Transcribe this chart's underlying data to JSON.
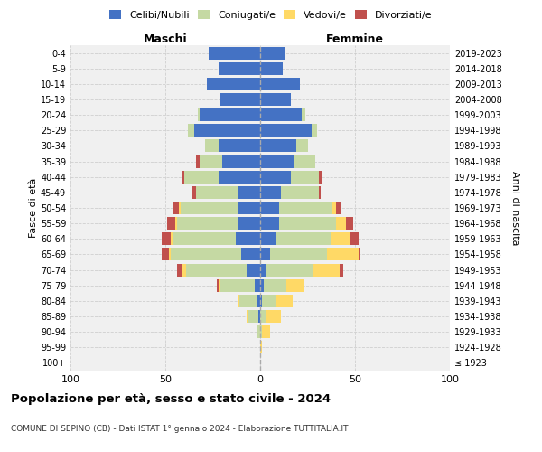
{
  "age_groups": [
    "100+",
    "95-99",
    "90-94",
    "85-89",
    "80-84",
    "75-79",
    "70-74",
    "65-69",
    "60-64",
    "55-59",
    "50-54",
    "45-49",
    "40-44",
    "35-39",
    "30-34",
    "25-29",
    "20-24",
    "15-19",
    "10-14",
    "5-9",
    "0-4"
  ],
  "birth_years": [
    "≤ 1923",
    "1924-1928",
    "1929-1933",
    "1934-1938",
    "1939-1943",
    "1944-1948",
    "1949-1953",
    "1954-1958",
    "1959-1963",
    "1964-1968",
    "1969-1973",
    "1974-1978",
    "1979-1983",
    "1984-1988",
    "1989-1993",
    "1994-1998",
    "1999-2003",
    "2004-2008",
    "2009-2013",
    "2014-2018",
    "2019-2023"
  ],
  "male": {
    "celibi": [
      0,
      0,
      0,
      1,
      2,
      3,
      7,
      10,
      13,
      12,
      12,
      12,
      22,
      20,
      22,
      35,
      32,
      21,
      28,
      22,
      27
    ],
    "coniugati": [
      0,
      0,
      2,
      5,
      9,
      18,
      32,
      37,
      33,
      32,
      30,
      22,
      18,
      12,
      7,
      3,
      1,
      0,
      0,
      0,
      0
    ],
    "vedovi": [
      0,
      0,
      0,
      1,
      1,
      1,
      2,
      1,
      1,
      1,
      1,
      0,
      0,
      0,
      0,
      0,
      0,
      0,
      0,
      0,
      0
    ],
    "divorziati": [
      0,
      0,
      0,
      0,
      0,
      1,
      3,
      4,
      5,
      4,
      3,
      2,
      1,
      2,
      0,
      0,
      0,
      0,
      0,
      0,
      0
    ]
  },
  "female": {
    "nubili": [
      0,
      0,
      0,
      0,
      1,
      2,
      3,
      5,
      8,
      10,
      10,
      11,
      16,
      18,
      19,
      27,
      22,
      16,
      21,
      12,
      13
    ],
    "coniugate": [
      0,
      0,
      1,
      3,
      7,
      12,
      25,
      30,
      29,
      30,
      28,
      20,
      15,
      11,
      6,
      3,
      2,
      0,
      0,
      0,
      0
    ],
    "vedove": [
      0,
      1,
      4,
      8,
      9,
      9,
      14,
      17,
      10,
      5,
      2,
      0,
      0,
      0,
      0,
      0,
      0,
      0,
      0,
      0,
      0
    ],
    "divorziate": [
      0,
      0,
      0,
      0,
      0,
      0,
      2,
      1,
      5,
      4,
      3,
      1,
      2,
      0,
      0,
      0,
      0,
      0,
      0,
      0,
      0
    ]
  },
  "colors": {
    "celibi_nubili": "#4472C4",
    "coniugati": "#C5D9A3",
    "vedovi": "#FFD966",
    "divorziati": "#C0504D"
  },
  "xlim": 100,
  "title": "Popolazione per età, sesso e stato civile - 2024",
  "subtitle": "COMUNE DI SEPINO (CB) - Dati ISTAT 1° gennaio 2024 - Elaborazione TUTTITALIA.IT",
  "xlabel_left": "Maschi",
  "xlabel_right": "Femmine",
  "ylabel_left": "Fasce di età",
  "ylabel_right": "Anni di nascita",
  "legend_labels": [
    "Celibi/Nubili",
    "Coniugati/e",
    "Vedovi/e",
    "Divorziati/e"
  ],
  "background_color": "#ffffff",
  "grid_color": "#cccccc",
  "ax_facecolor": "#f0f0f0"
}
